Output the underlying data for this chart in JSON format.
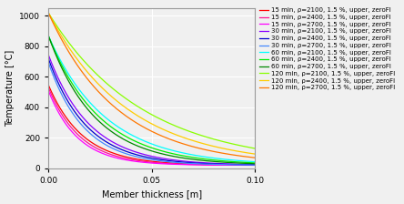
{
  "xlabel": "Member thickness [m]",
  "ylabel": "Temperature [°C]",
  "xlim": [
    0,
    0.1
  ],
  "ylim": [
    0,
    1050
  ],
  "yticks": [
    0,
    200,
    400,
    600,
    800,
    1000
  ],
  "xticks": [
    0,
    0.05,
    0.1
  ],
  "series": [
    {
      "label": "15 min, ρ=2100, 1.5 %, upper, zeroFl",
      "color": "#ff0000",
      "T0": 547,
      "k": 60
    },
    {
      "label": "15 min, ρ=2400, 1.5 %, upper, zeroFl",
      "color": "#ff1493",
      "T0": 530,
      "k": 65
    },
    {
      "label": "15 min, ρ=2700, 1.5 %, upper, zeroFl",
      "color": "#ff00ff",
      "T0": 510,
      "k": 70
    },
    {
      "label": "30 min, ρ=2100, 1.5 %, upper, zeroFl",
      "color": "#8800ff",
      "T0": 745,
      "k": 50
    },
    {
      "label": "30 min, ρ=2400, 1.5 %, upper, zeroFl",
      "color": "#0000cc",
      "T0": 720,
      "k": 54
    },
    {
      "label": "30 min, ρ=2700, 1.5 %, upper, zeroFl",
      "color": "#4488ff",
      "T0": 695,
      "k": 58
    },
    {
      "label": "60 min, ρ=2100, 1.5 %, upper, zeroFl",
      "color": "#00ffff",
      "T0": 870,
      "k": 36
    },
    {
      "label": "60 min, ρ=2400, 1.5 %, upper, zeroFl",
      "color": "#00ee00",
      "T0": 870,
      "k": 40
    },
    {
      "label": "60 min, ρ=2700, 1.5 %, upper, zeroFl",
      "color": "#008800",
      "T0": 870,
      "k": 44
    },
    {
      "label": "120 min, ρ=2100, 1.5 %, upper, zeroFl",
      "color": "#88ff00",
      "T0": 1020,
      "k": 22
    },
    {
      "label": "120 min, ρ=2400, 1.5 %, upper, zeroFl",
      "color": "#ffcc00",
      "T0": 1020,
      "k": 26
    },
    {
      "label": "120 min, ρ=2700, 1.5 %, upper, zeroFl",
      "color": "#ff7700",
      "T0": 1020,
      "k": 30
    }
  ],
  "background_color": "#f0f0f0",
  "grid_color": "#ffffff",
  "legend_fontsize": 5.0,
  "axis_fontsize": 7,
  "tick_fontsize": 6.5
}
